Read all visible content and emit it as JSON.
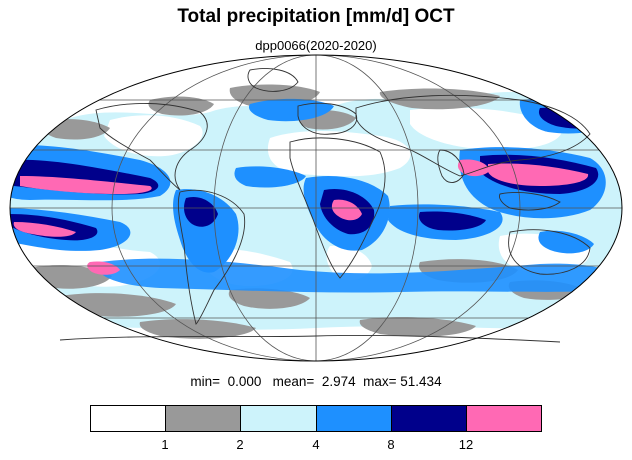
{
  "title": "Total precipitation [mm/d] OCT",
  "subtitle": "dpp0066(2020-2020)",
  "stats": {
    "min_label": "min=",
    "min_value": "0.000",
    "mean_label": "mean=",
    "mean_value": "2.974",
    "max_label": "max=",
    "max_value": "51.434"
  },
  "colorbar": {
    "colors": [
      "#ffffff",
      "#999999",
      "#cdf3fb",
      "#1e90ff",
      "#00008b",
      "#ff69b4"
    ],
    "ticks": [
      "1",
      "2",
      "4",
      "8",
      "12"
    ]
  },
  "map": {
    "projection": "mollweide",
    "colors": {
      "dry": "#ffffff",
      "light": "#999999",
      "moderate": "#cdf3fb",
      "heavy": "#1e90ff",
      "very_heavy": "#00008b",
      "extreme": "#ff69b4"
    }
  }
}
